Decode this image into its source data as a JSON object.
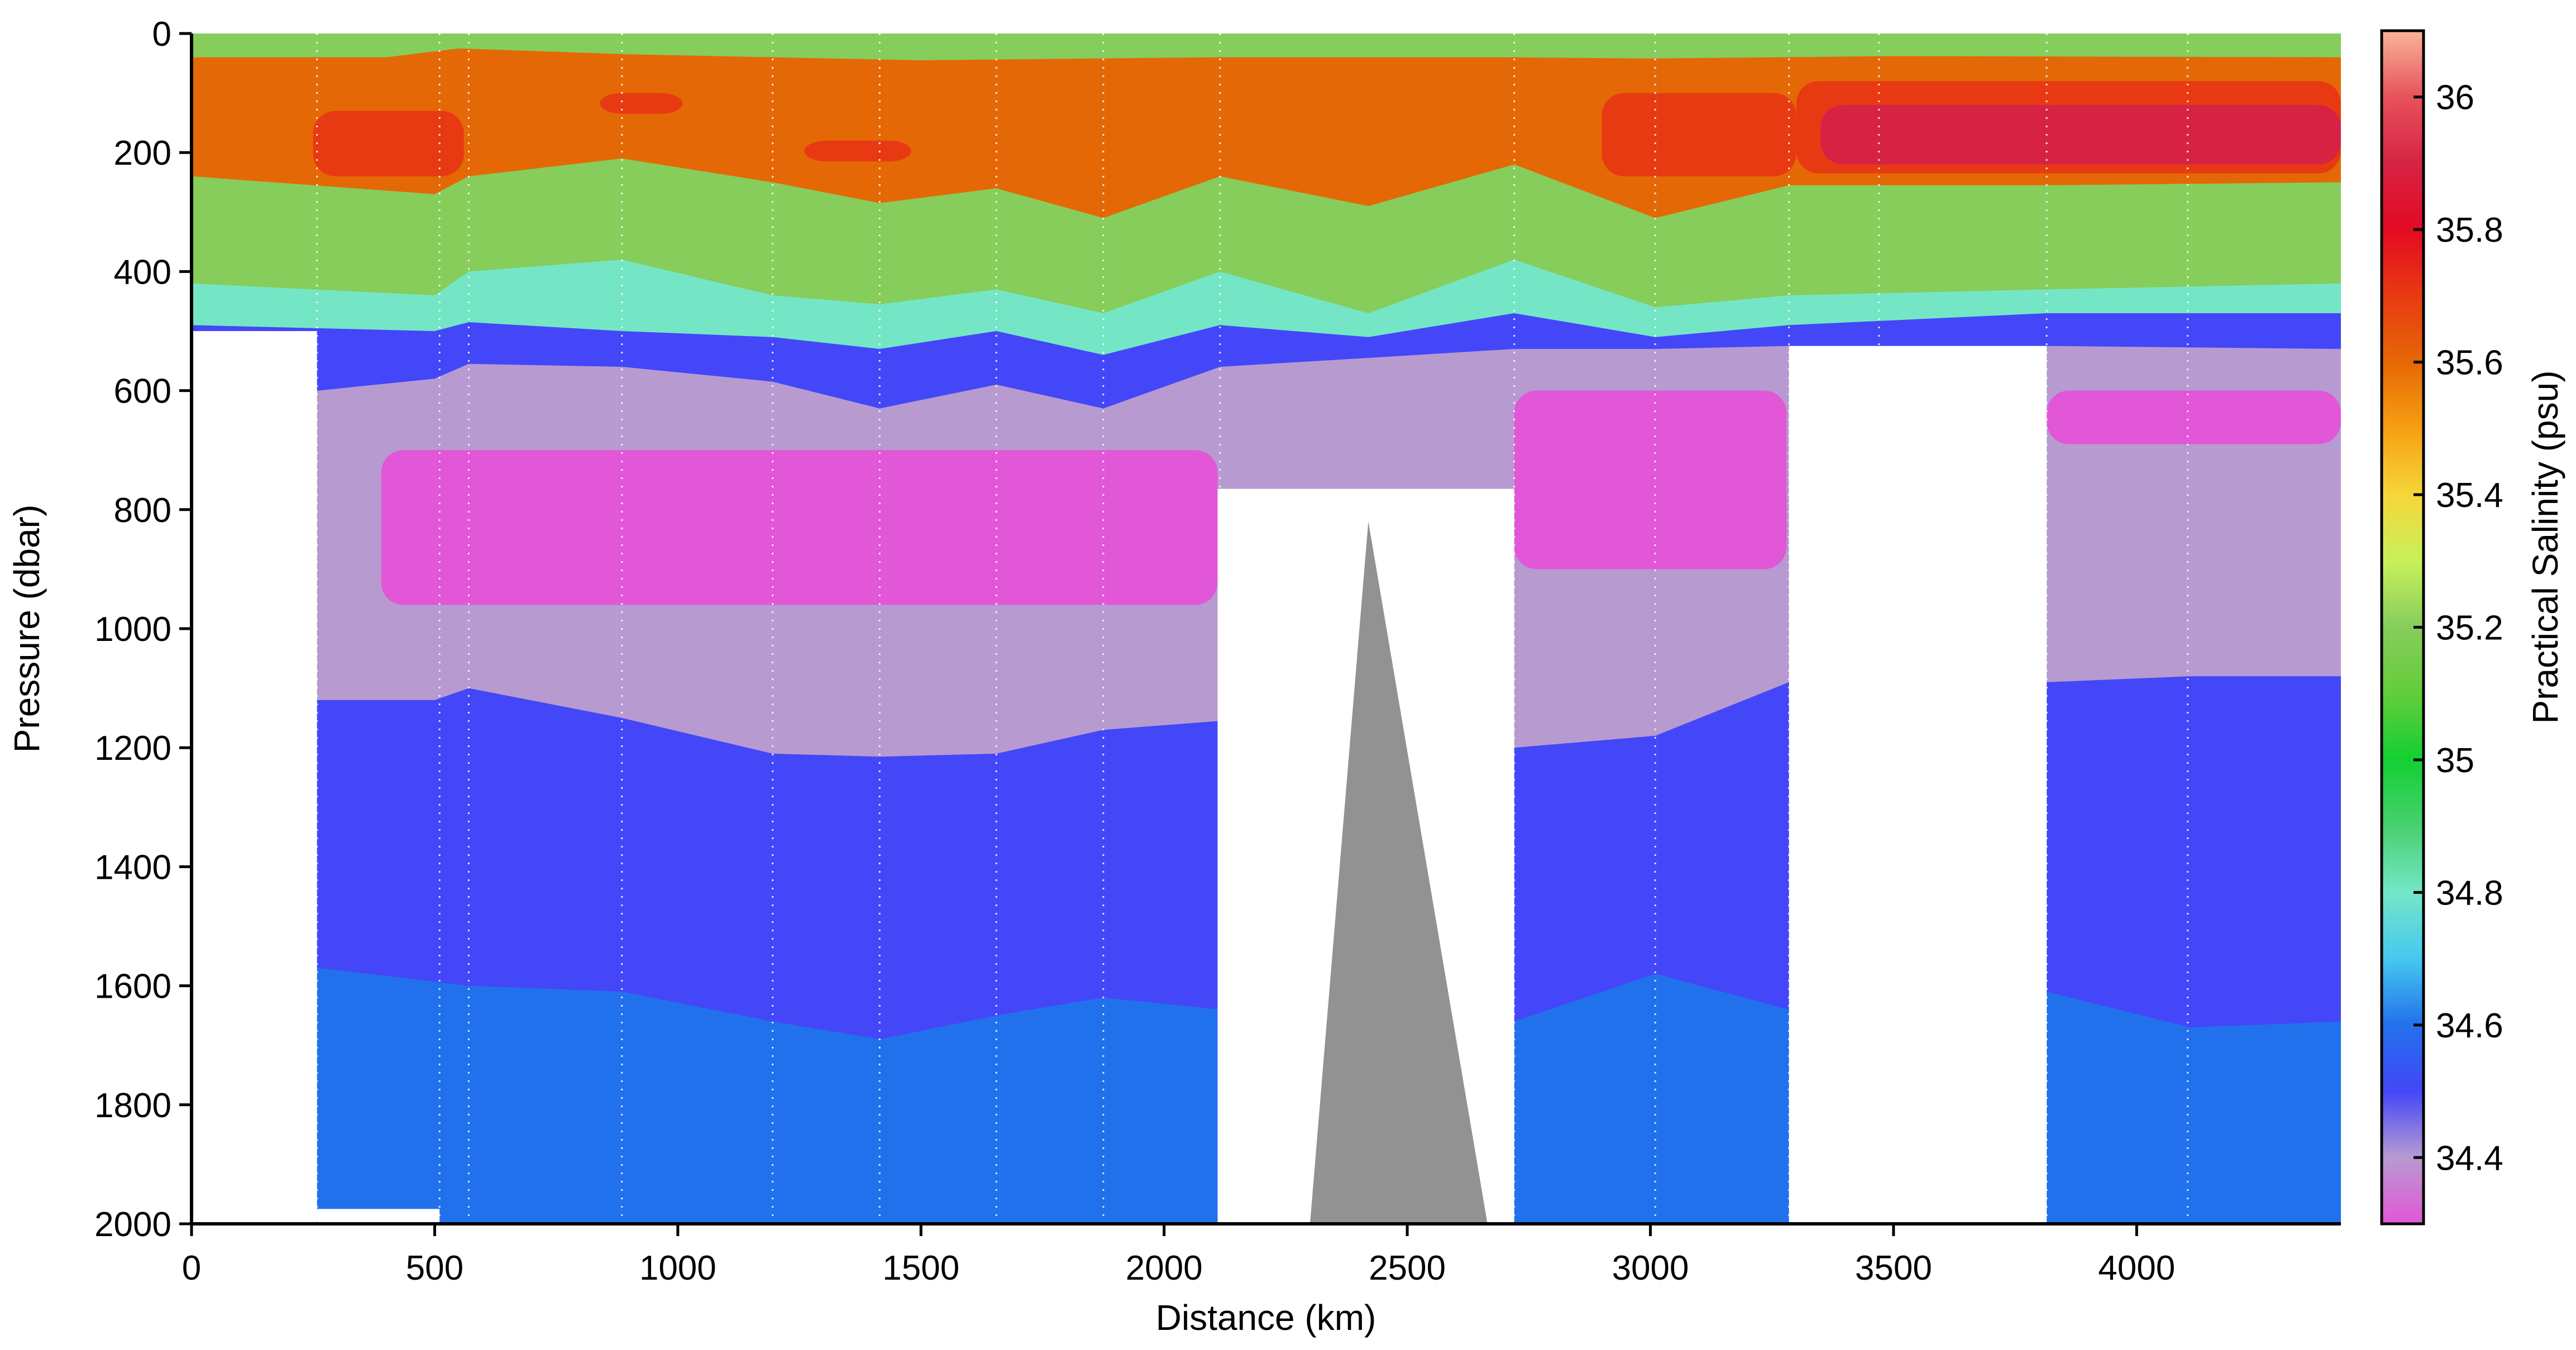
{
  "chart_data": {
    "type": "heatmap",
    "title": "",
    "xlabel": "Distance (km)",
    "ylabel": "Pressure (dbar)",
    "colorbar_label": "Practical Salinity (psu)",
    "xlim": [
      0,
      4420
    ],
    "ylim": [
      2000,
      0
    ],
    "clim": [
      34.3,
      36.1
    ],
    "x_ticks": [
      0,
      500,
      1000,
      1500,
      2000,
      2500,
      3000,
      3500,
      4000
    ],
    "x_tick_labels": [
      "0",
      "500",
      "1000",
      "1500",
      "2000",
      "2500",
      "3000",
      "3500",
      "4000"
    ],
    "y_ticks": [
      0,
      200,
      400,
      600,
      800,
      1000,
      1200,
      1400,
      1600,
      1800,
      2000
    ],
    "y_tick_labels": [
      "0",
      "200",
      "400",
      "600",
      "800",
      "1000",
      "1200",
      "1400",
      "1600",
      "1800",
      "2000"
    ],
    "colorbar_ticks": [
      34.4,
      34.6,
      34.8,
      35.0,
      35.2,
      35.4,
      35.6,
      35.8,
      36.0
    ],
    "colorbar_tick_labels": [
      "34.4",
      "34.6",
      "34.8",
      "35",
      "35.2",
      "35.4",
      "35.6",
      "35.8",
      "36"
    ],
    "colormap": [
      {
        "v": 34.3,
        "color": "#e256d8"
      },
      {
        "v": 34.4,
        "color": "#b79ad0"
      },
      {
        "v": 34.5,
        "color": "#4347f8"
      },
      {
        "v": 34.6,
        "color": "#2271ec"
      },
      {
        "v": 34.7,
        "color": "#46c8f0"
      },
      {
        "v": 34.8,
        "color": "#74e6c6"
      },
      {
        "v": 34.9,
        "color": "#48d070"
      },
      {
        "v": 35.0,
        "color": "#12d032"
      },
      {
        "v": 35.1,
        "color": "#63cd3b"
      },
      {
        "v": 35.2,
        "color": "#86cd5b"
      },
      {
        "v": 35.3,
        "color": "#c8f05a"
      },
      {
        "v": 35.4,
        "color": "#f6d63a"
      },
      {
        "v": 35.5,
        "color": "#f5a012"
      },
      {
        "v": 35.6,
        "color": "#e56806"
      },
      {
        "v": 35.7,
        "color": "#e83a12"
      },
      {
        "v": 35.8,
        "color": "#e40a22"
      },
      {
        "v": 35.9,
        "color": "#d62344"
      },
      {
        "v": 36.0,
        "color": "#e7525a"
      },
      {
        "v": 36.1,
        "color": "#f8b49a"
      }
    ],
    "station_distances_km": [
      258,
      510,
      570,
      885,
      1195,
      1415,
      1655,
      1875,
      2115,
      2720,
      3010,
      3285,
      3470,
      3815,
      4105
    ],
    "salinity_layers": [
      {
        "name": "surface",
        "salinity": 35.2,
        "bottom_dbar": [
          [
            0,
            40
          ],
          [
            400,
            40
          ],
          [
            550,
            25
          ],
          [
            900,
            35
          ],
          [
            1500,
            45
          ],
          [
            2100,
            40
          ],
          [
            2700,
            40
          ],
          [
            3000,
            42
          ],
          [
            3500,
            38
          ],
          [
            4420,
            40
          ]
        ]
      },
      {
        "name": "subsurface-max",
        "salinity": 35.6,
        "bottom_dbar": [
          [
            0,
            240
          ],
          [
            500,
            270
          ],
          [
            570,
            240
          ],
          [
            885,
            210
          ],
          [
            1195,
            250
          ],
          [
            1415,
            285
          ],
          [
            1655,
            260
          ],
          [
            1875,
            310
          ],
          [
            2115,
            240
          ],
          [
            2420,
            290
          ],
          [
            2720,
            220
          ],
          [
            3010,
            310
          ],
          [
            3285,
            255
          ],
          [
            3470,
            255
          ],
          [
            3815,
            255
          ],
          [
            4420,
            250
          ]
        ]
      },
      {
        "name": "high-salinity-core",
        "salinity": 35.75,
        "regions": [
          {
            "x0": 250,
            "x1": 560,
            "top": 130,
            "bottom": 240
          },
          {
            "x0": 840,
            "x1": 1010,
            "top": 100,
            "bottom": 135
          },
          {
            "x0": 1260,
            "x1": 1480,
            "top": 180,
            "bottom": 215
          },
          {
            "x0": 2900,
            "x1": 3300,
            "top": 100,
            "bottom": 240
          },
          {
            "x0": 3300,
            "x1": 4420,
            "top": 80,
            "bottom": 235
          }
        ]
      },
      {
        "name": "core-maximum",
        "salinity": 35.92,
        "regions": [
          {
            "x0": 3350,
            "x1": 4420,
            "top": 120,
            "bottom": 220
          }
        ]
      },
      {
        "name": "gradient",
        "salinity": 35.2,
        "bottom_dbar": [
          [
            0,
            420
          ],
          [
            500,
            440
          ],
          [
            570,
            400
          ],
          [
            885,
            380
          ],
          [
            1195,
            440
          ],
          [
            1415,
            455
          ],
          [
            1655,
            430
          ],
          [
            1875,
            470
          ],
          [
            2115,
            400
          ],
          [
            2420,
            470
          ],
          [
            2720,
            380
          ],
          [
            3010,
            460
          ],
          [
            3285,
            440
          ],
          [
            3815,
            430
          ],
          [
            4420,
            420
          ]
        ]
      },
      {
        "name": "thermocline-lower",
        "salinity": 34.8,
        "bottom_dbar": [
          [
            0,
            490
          ],
          [
            500,
            500
          ],
          [
            570,
            485
          ],
          [
            885,
            500
          ],
          [
            1195,
            510
          ],
          [
            1415,
            530
          ],
          [
            1655,
            500
          ],
          [
            1875,
            540
          ],
          [
            2115,
            490
          ],
          [
            2420,
            510
          ],
          [
            2720,
            470
          ],
          [
            3010,
            510
          ],
          [
            3285,
            490
          ],
          [
            3815,
            470
          ],
          [
            4420,
            470
          ]
        ]
      },
      {
        "name": "upper-intermediate",
        "salinity": 34.55,
        "bottom_dbar": [
          [
            0,
            600
          ],
          [
            260,
            600
          ],
          [
            500,
            580
          ],
          [
            570,
            555
          ],
          [
            885,
            560
          ],
          [
            1195,
            585
          ],
          [
            1415,
            630
          ],
          [
            1655,
            590
          ],
          [
            1875,
            630
          ],
          [
            2115,
            560
          ],
          [
            2420,
            545
          ],
          [
            2720,
            530
          ],
          [
            3010,
            530
          ],
          [
            3285,
            525
          ],
          [
            3815,
            525
          ],
          [
            4420,
            530
          ]
        ]
      },
      {
        "name": "intermediate",
        "salinity": 34.4,
        "bottom_dbar": [
          [
            0,
            1120
          ],
          [
            500,
            1120
          ],
          [
            570,
            1100
          ],
          [
            885,
            1150
          ],
          [
            1195,
            1210
          ],
          [
            1415,
            1215
          ],
          [
            1655,
            1210
          ],
          [
            1875,
            1170
          ],
          [
            2115,
            1155
          ],
          [
            2420,
            1150
          ],
          [
            2720,
            1200
          ],
          [
            3010,
            1180
          ],
          [
            3285,
            1090
          ],
          [
            3815,
            1090
          ],
          [
            4110,
            1080
          ],
          [
            4420,
            1080
          ]
        ]
      },
      {
        "name": "intermediate-water-min",
        "salinity": 34.3,
        "regions": [
          {
            "x0": 390,
            "x1": 2110,
            "top": 700,
            "bottom": 960
          },
          {
            "x0": 2720,
            "x1": 3280,
            "top": 600,
            "bottom": 900
          },
          {
            "x0": 3815,
            "x1": 4420,
            "top": 600,
            "bottom": 690
          }
        ]
      },
      {
        "name": "deep-upper",
        "salinity": 34.5,
        "bottom_dbar": [
          [
            0,
            1570
          ],
          [
            260,
            1570
          ],
          [
            570,
            1600
          ],
          [
            885,
            1610
          ],
          [
            1195,
            1660
          ],
          [
            1415,
            1690
          ],
          [
            1655,
            1650
          ],
          [
            1875,
            1620
          ],
          [
            2115,
            1640
          ],
          [
            2420,
            1650
          ],
          [
            2720,
            1660
          ],
          [
            3010,
            1580
          ],
          [
            3285,
            1640
          ],
          [
            3815,
            1610
          ],
          [
            4110,
            1670
          ],
          [
            4420,
            1660
          ]
        ]
      },
      {
        "name": "deep-lower",
        "salinity": 34.6,
        "bottom_dbar": [
          [
            0,
            2000
          ],
          [
            4420,
            2000
          ]
        ]
      }
    ],
    "masked_areas": [
      {
        "x0": 0,
        "x1": 258,
        "top": 500,
        "bottom": 2000
      },
      {
        "x0": 258,
        "x1": 510,
        "top": 1975,
        "bottom": 2000
      },
      {
        "x0": 2110,
        "x1": 2720,
        "top": 765,
        "bottom": 2000
      },
      {
        "x0": 3285,
        "x1": 3815,
        "top": 525,
        "bottom": 2000
      }
    ],
    "seamount": {
      "peak_x": 2420,
      "peak_dbar": 820,
      "base_x0": 2300,
      "base_x1": 2665
    },
    "grid": false
  }
}
